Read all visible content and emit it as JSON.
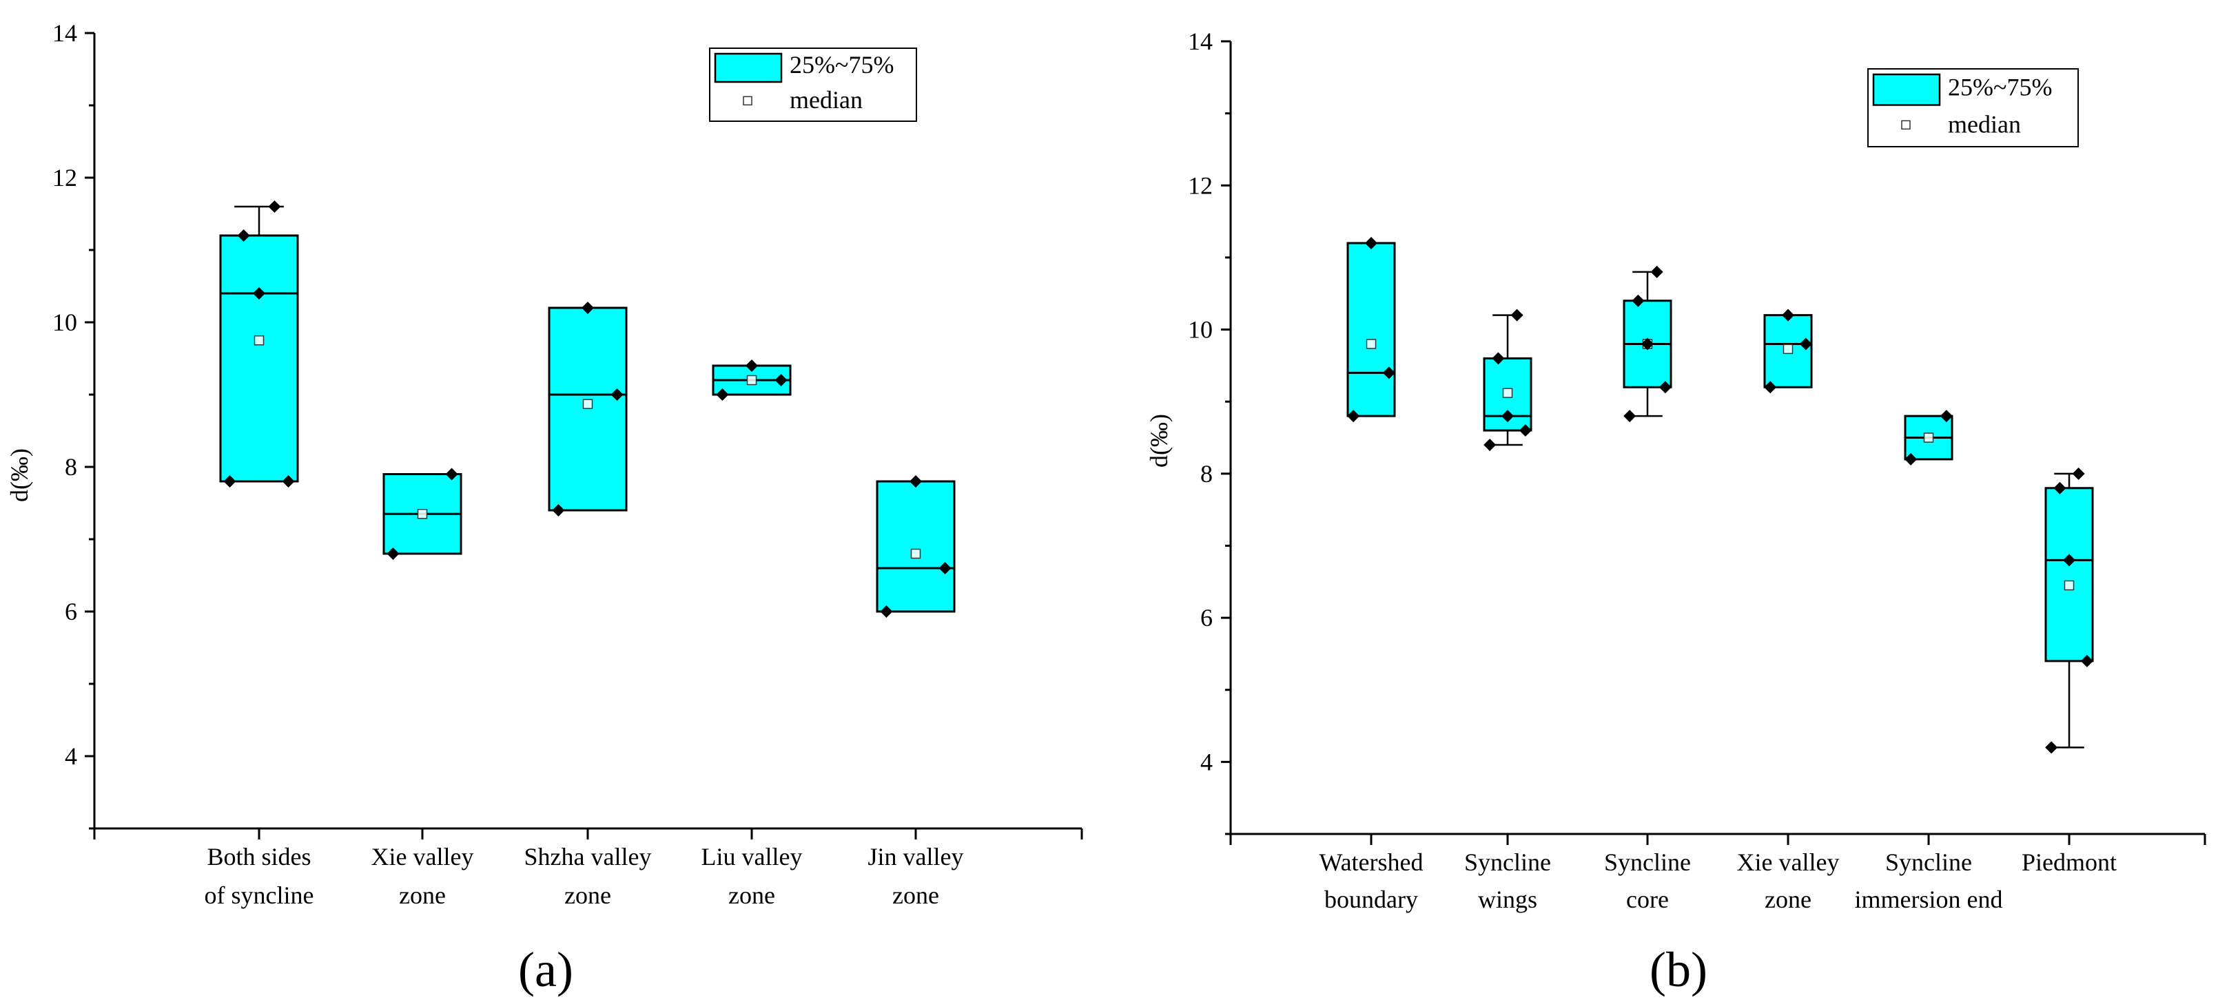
{
  "colors": {
    "box_fill": "#00FFFF",
    "stroke": "#000000",
    "background": "#FFFFFF"
  },
  "chart_data": [
    {
      "type": "box",
      "panel_label": "(a)",
      "ylabel": "d(‰)",
      "xlabel": "",
      "ylim": [
        3,
        14
      ],
      "y_ticks": [
        4,
        6,
        8,
        10,
        12,
        14
      ],
      "legend": {
        "box_label": "25%~75%",
        "median_marker_label": "median",
        "placement": "top-right"
      },
      "categories": [
        {
          "label_lines": [
            "Both sides",
            "of syncline"
          ],
          "whisker": [
            7.8,
            11.6
          ],
          "q1": 7.8,
          "q3": 11.2,
          "median": 10.4,
          "mean_marker": 9.75,
          "points": [
            7.8,
            7.8,
            10.4,
            11.2,
            11.6
          ]
        },
        {
          "label_lines": [
            "Xie valley",
            "zone"
          ],
          "whisker": [
            6.8,
            7.9
          ],
          "q1": 6.8,
          "q3": 7.9,
          "median": 7.35,
          "mean_marker": 7.35,
          "points": [
            6.8,
            7.9
          ]
        },
        {
          "label_lines": [
            "Shzha valley",
            "zone"
          ],
          "whisker": [
            7.4,
            10.2
          ],
          "q1": 7.4,
          "q3": 10.2,
          "median": 9.0,
          "mean_marker": 8.87,
          "points": [
            7.4,
            9.0,
            10.2
          ]
        },
        {
          "label_lines": [
            "Liu valley",
            "zone"
          ],
          "whisker": [
            9.0,
            9.4
          ],
          "q1": 9.0,
          "q3": 9.4,
          "median": 9.2,
          "mean_marker": 9.2,
          "points": [
            9.0,
            9.2,
            9.4
          ]
        },
        {
          "label_lines": [
            "Jin valley",
            "zone"
          ],
          "whisker": [
            6.0,
            7.8
          ],
          "q1": 6.0,
          "q3": 7.8,
          "median": 6.6,
          "mean_marker": 6.8,
          "points": [
            6.0,
            6.6,
            7.8
          ]
        }
      ]
    },
    {
      "type": "box",
      "panel_label": "(b)",
      "ylabel": "d(‰)",
      "xlabel": "",
      "ylim": [
        3,
        14
      ],
      "y_ticks": [
        4,
        6,
        8,
        10,
        12,
        14
      ],
      "legend": {
        "box_label": "25%~75%",
        "median_marker_label": "median",
        "placement": "top-right"
      },
      "categories": [
        {
          "label_lines": [
            "Watershed",
            "boundary"
          ],
          "whisker": [
            8.8,
            11.2
          ],
          "q1": 8.8,
          "q3": 11.2,
          "median": 9.4,
          "mean_marker": 9.8,
          "points": [
            8.8,
            9.4,
            11.2
          ]
        },
        {
          "label_lines": [
            "Syncline",
            "wings"
          ],
          "whisker": [
            8.4,
            10.2
          ],
          "q1": 8.6,
          "q3": 9.6,
          "median": 8.8,
          "mean_marker": 9.12,
          "points": [
            8.4,
            8.6,
            8.8,
            9.6,
            10.2
          ]
        },
        {
          "label_lines": [
            "Syncline",
            "core"
          ],
          "whisker": [
            8.8,
            10.8
          ],
          "q1": 9.2,
          "q3": 10.4,
          "median": 9.8,
          "mean_marker": 9.8,
          "points": [
            8.8,
            9.2,
            9.8,
            10.4,
            10.8
          ]
        },
        {
          "label_lines": [
            "Xie valley",
            "zone"
          ],
          "whisker": [
            9.2,
            10.2
          ],
          "q1": 9.2,
          "q3": 10.2,
          "median": 9.8,
          "mean_marker": 9.73,
          "points": [
            9.2,
            9.8,
            10.2
          ]
        },
        {
          "label_lines": [
            "Syncline",
            "immersion end"
          ],
          "whisker": [
            8.2,
            8.8
          ],
          "q1": 8.2,
          "q3": 8.8,
          "median": 8.5,
          "mean_marker": 8.5,
          "points": [
            8.2,
            8.8
          ]
        },
        {
          "label_lines": [
            "Piedmont"
          ],
          "whisker": [
            4.2,
            8.0
          ],
          "q1": 5.4,
          "q3": 7.8,
          "median": 6.8,
          "mean_marker": 6.45,
          "points": [
            4.2,
            5.4,
            6.8,
            7.8,
            8.0
          ]
        }
      ]
    }
  ]
}
